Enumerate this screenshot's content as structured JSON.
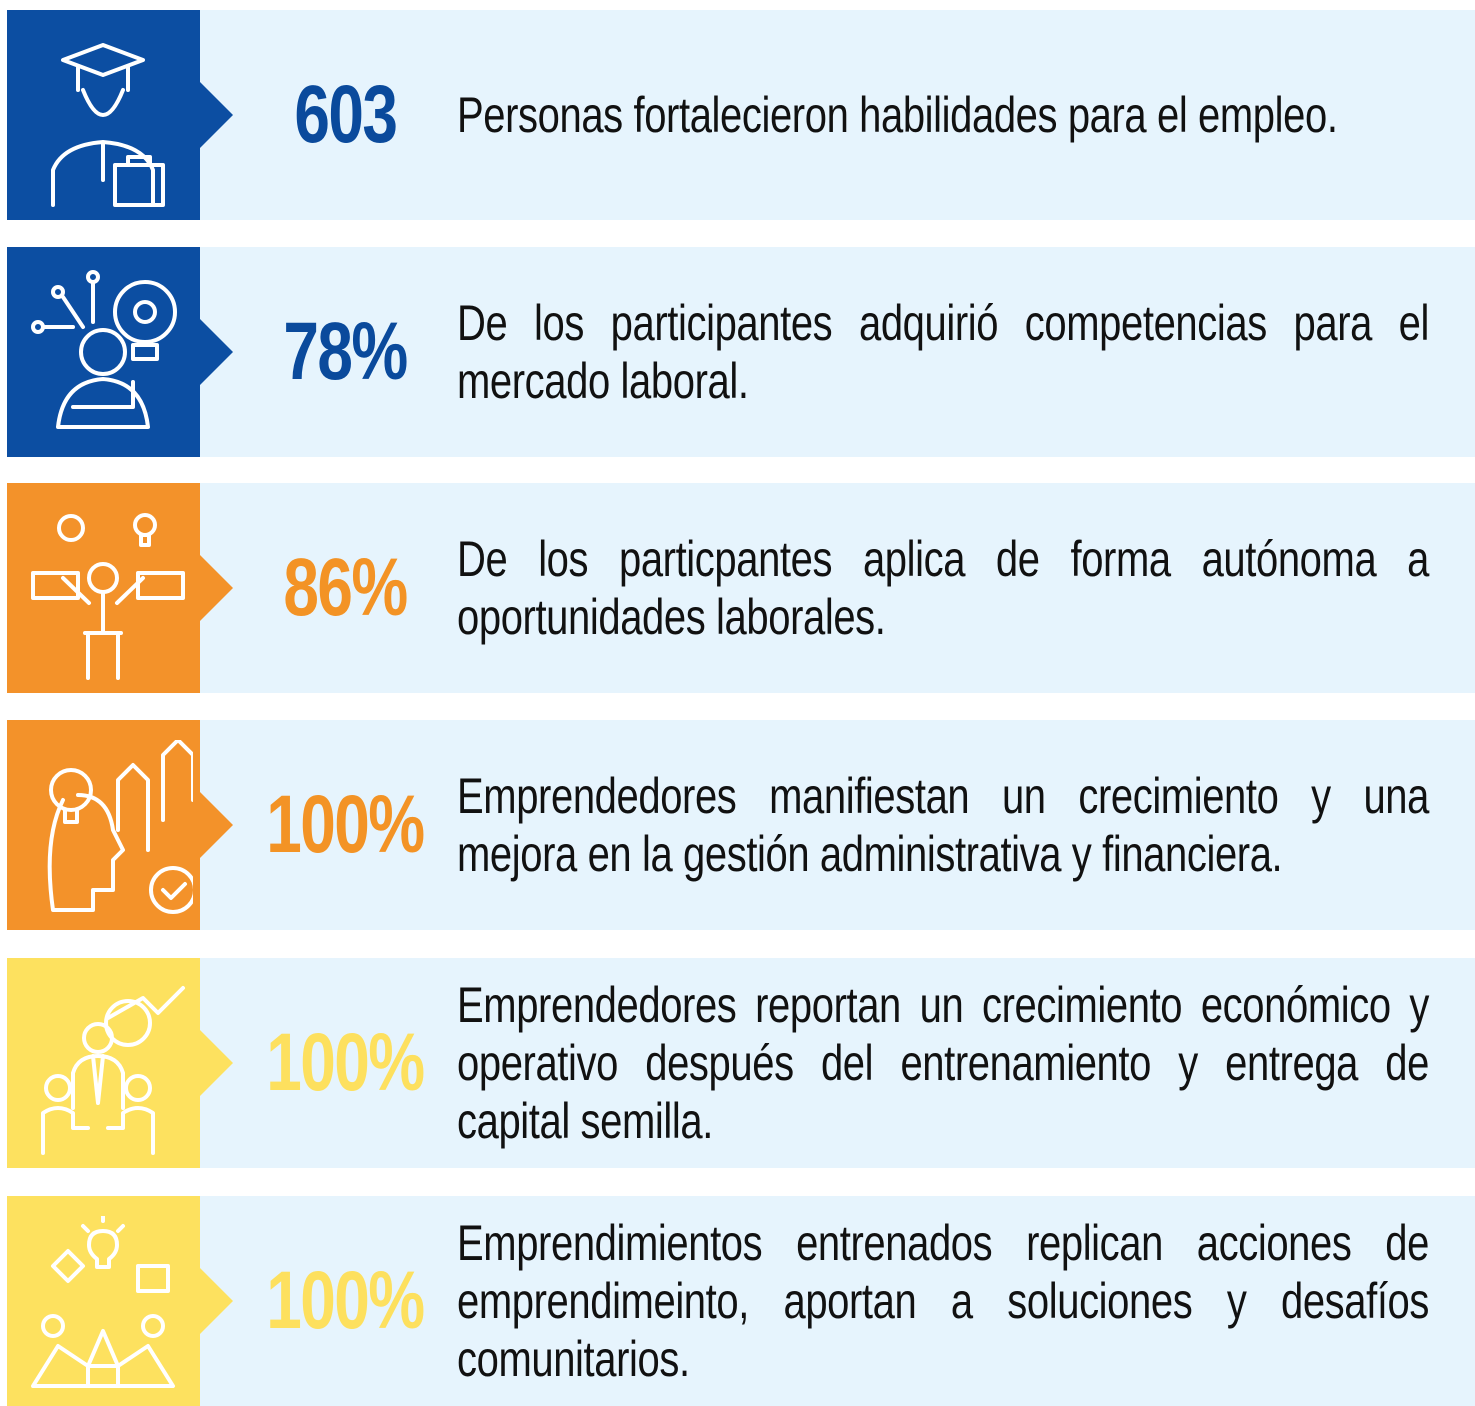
{
  "items": [
    {
      "stat": "603",
      "text": "Personas fortalecieron habilidades para el empleo."
    },
    {
      "stat": "78%",
      "text": "De los participantes adquirió competencias para el mercado laboral."
    },
    {
      "stat": "86%",
      "text": "De los particpantes aplica de forma autónoma a oportunidades laborales."
    },
    {
      "stat": "100%",
      "text": "Emprendedores manifiestan un crecimiento y una mejora en la gestión administrativa y financiera."
    },
    {
      "stat": "100%",
      "text": "Emprendedores reportan un crecimiento económico y operativo después del entrenamiento y entrega de capital semilla."
    },
    {
      "stat": "100%",
      "text": "Emprendimientos entrenados replican acciones de emprendimeinto, aportan a soluciones y desafíos comunitarios."
    }
  ]
}
